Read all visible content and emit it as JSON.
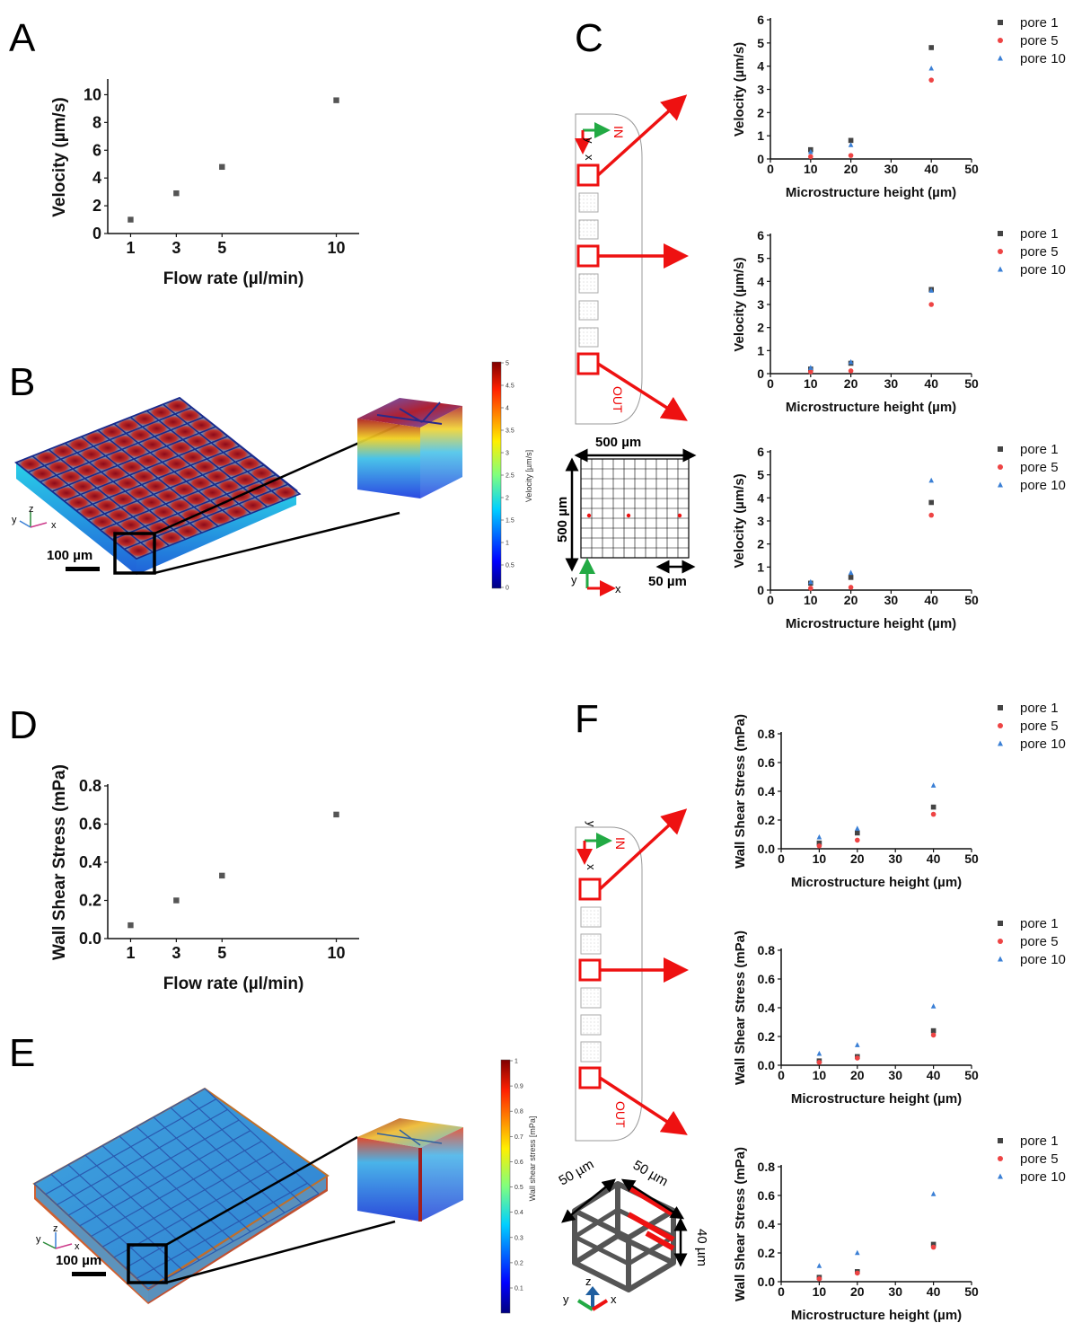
{
  "panels": {
    "A": "A",
    "B": "B",
    "C": "C",
    "D": "D",
    "E": "E",
    "F": "F"
  },
  "colors": {
    "pore1": "#444444",
    "pore5": "#ee4444",
    "pore10": "#3a7fd5",
    "arrow_red": "#ee1111",
    "arrow_green": "#22aa44"
  },
  "panel_B": {
    "colorbar_title": "Velocity [µm/s]",
    "colorbar_ticks": [
      "5",
      "4.5",
      "4",
      "3.5",
      "3",
      "2.5",
      "2",
      "1.5",
      "1",
      "0.5",
      "0"
    ],
    "scale_bar": "100 µm",
    "axes": {
      "x": "x",
      "y": "y",
      "z": "z"
    }
  },
  "panel_E": {
    "colorbar_title": "Wall shear stress [mPa]",
    "colorbar_ticks": [
      "1",
      "0.9",
      "0.8",
      "0.7",
      "0.6",
      "0.5",
      "0.4",
      "0.3",
      "0.2",
      "0.1"
    ],
    "scale_bar": "100 µm",
    "axes": {
      "x": "x",
      "y": "y",
      "z": "z"
    }
  },
  "channel_diagram": {
    "in_label": "IN",
    "out_label": "OUT",
    "axis_x": "x",
    "axis_y": "y"
  },
  "grid_diagram": {
    "width_label": "500 µm",
    "height_label": "500 µm",
    "pitch_label": "50 µm",
    "axis_x": "x",
    "axis_y": "y"
  },
  "cube_diagram": {
    "label_left": "50 µm",
    "label_right": "50 µm",
    "label_height": "40 µm",
    "axis_x": "x",
    "axis_y": "y",
    "axis_z": "z"
  },
  "chart_data": [
    {
      "id": "A",
      "type": "scatter",
      "xlabel": "Flow rate (µl/min)",
      "ylabel": "Velocity (µm/s)",
      "x": [
        1,
        3,
        5,
        10
      ],
      "xticks": [
        1,
        3,
        5,
        10
      ],
      "xlim": [
        0,
        11
      ],
      "ylim": [
        0,
        11
      ],
      "yticks": [
        0,
        2,
        4,
        6,
        8,
        10
      ],
      "series": [
        {
          "values": [
            1.0,
            2.9,
            4.8,
            9.6
          ],
          "marker": "square",
          "color": "#555555"
        }
      ]
    },
    {
      "id": "D",
      "type": "scatter",
      "xlabel": "Flow rate (µl/min)",
      "ylabel": "Wall Shear Stress (mPa)",
      "x": [
        1,
        3,
        5,
        10
      ],
      "xticks": [
        1,
        3,
        5,
        10
      ],
      "xlim": [
        0,
        11
      ],
      "ylim": [
        0,
        0.8
      ],
      "yticks": [
        "0.0",
        "0.2",
        "0.4",
        "0.6",
        "0.8"
      ],
      "series": [
        {
          "values": [
            0.07,
            0.2,
            0.33,
            0.65
          ],
          "marker": "square",
          "color": "#555555"
        }
      ]
    },
    {
      "id": "C1",
      "type": "scatter",
      "xlabel": "Microstructure height (µm)",
      "ylabel": "Velocity (µm/s)",
      "x": [
        10,
        20,
        40
      ],
      "xticks": [
        0,
        10,
        20,
        30,
        40,
        50
      ],
      "xlim": [
        0,
        50
      ],
      "ylim": [
        0,
        6
      ],
      "yticks": [
        0,
        1,
        2,
        3,
        4,
        5,
        6
      ],
      "legend": "top-right",
      "series": [
        {
          "name": "pore 1",
          "values": [
            0.4,
            0.8,
            4.8
          ],
          "marker": "square"
        },
        {
          "name": "pore 5",
          "values": [
            0.1,
            0.15,
            3.4
          ],
          "marker": "circle"
        },
        {
          "name": "pore 10",
          "values": [
            0.3,
            0.6,
            3.9
          ],
          "marker": "triangle"
        }
      ]
    },
    {
      "id": "C2",
      "type": "scatter",
      "xlabel": "Microstructure height (µm)",
      "ylabel": "Velocity (µm/s)",
      "x": [
        10,
        20,
        40
      ],
      "xticks": [
        0,
        10,
        20,
        30,
        40,
        50
      ],
      "xlim": [
        0,
        50
      ],
      "ylim": [
        0,
        6
      ],
      "yticks": [
        0,
        1,
        2,
        3,
        4,
        5,
        6
      ],
      "legend": "top-right",
      "series": [
        {
          "name": "pore 1",
          "values": [
            0.2,
            0.45,
            3.65
          ],
          "marker": "square"
        },
        {
          "name": "pore 5",
          "values": [
            0.08,
            0.12,
            3.0
          ],
          "marker": "circle"
        },
        {
          "name": "pore 10",
          "values": [
            0.25,
            0.5,
            3.6
          ],
          "marker": "triangle"
        }
      ]
    },
    {
      "id": "C3",
      "type": "scatter",
      "xlabel": "Microstructure height (µm)",
      "ylabel": "Velocity (µm/s)",
      "x": [
        10,
        20,
        40
      ],
      "xticks": [
        0,
        10,
        20,
        30,
        40,
        50
      ],
      "xlim": [
        0,
        50
      ],
      "ylim": [
        0,
        6
      ],
      "yticks": [
        0,
        1,
        2,
        3,
        4,
        5,
        6
      ],
      "legend": "top-right",
      "series": [
        {
          "name": "pore 1",
          "values": [
            0.3,
            0.55,
            3.8
          ],
          "marker": "square"
        },
        {
          "name": "pore 5",
          "values": [
            0.08,
            0.12,
            3.25
          ],
          "marker": "circle"
        },
        {
          "name": "pore 10",
          "values": [
            0.35,
            0.75,
            4.75
          ],
          "marker": "triangle"
        }
      ]
    },
    {
      "id": "F1",
      "type": "scatter",
      "xlabel": "Microstructure height (µm)",
      "ylabel": "Wall Shear Stress (mPa)",
      "x": [
        10,
        20,
        40
      ],
      "xticks": [
        0,
        10,
        20,
        30,
        40,
        50
      ],
      "xlim": [
        0,
        50
      ],
      "ylim": [
        0,
        0.8
      ],
      "yticks": [
        "0.0",
        "0.2",
        "0.4",
        "0.6",
        "0.8"
      ],
      "legend": "top-right",
      "series": [
        {
          "name": "pore 1",
          "values": [
            0.04,
            0.11,
            0.29
          ],
          "marker": "square"
        },
        {
          "name": "pore 5",
          "values": [
            0.02,
            0.06,
            0.24
          ],
          "marker": "circle"
        },
        {
          "name": "pore 10",
          "values": [
            0.08,
            0.14,
            0.44
          ],
          "marker": "triangle"
        }
      ]
    },
    {
      "id": "F2",
      "type": "scatter",
      "xlabel": "Microstructure height (µm)",
      "ylabel": "Wall Shear Stress (mPa)",
      "x": [
        10,
        20,
        40
      ],
      "xticks": [
        0,
        10,
        20,
        30,
        40,
        50
      ],
      "xlim": [
        0,
        50
      ],
      "ylim": [
        0,
        0.8
      ],
      "yticks": [
        "0.0",
        "0.2",
        "0.4",
        "0.6",
        "0.8"
      ],
      "legend": "top-right",
      "series": [
        {
          "name": "pore 1",
          "values": [
            0.03,
            0.06,
            0.24
          ],
          "marker": "square"
        },
        {
          "name": "pore 5",
          "values": [
            0.02,
            0.05,
            0.21
          ],
          "marker": "circle"
        },
        {
          "name": "pore 10",
          "values": [
            0.08,
            0.14,
            0.41
          ],
          "marker": "triangle"
        }
      ]
    },
    {
      "id": "F3",
      "type": "scatter",
      "xlabel": "Microstructure height (µm)",
      "ylabel": "Wall Shear Stress (mPa)",
      "x": [
        10,
        20,
        40
      ],
      "xticks": [
        0,
        10,
        20,
        30,
        40,
        50
      ],
      "xlim": [
        0,
        50
      ],
      "ylim": [
        0,
        0.8
      ],
      "yticks": [
        "0.0",
        "0.2",
        "0.4",
        "0.6",
        "0.8"
      ],
      "legend": "top-right",
      "series": [
        {
          "name": "pore 1",
          "values": [
            0.03,
            0.07,
            0.26
          ],
          "marker": "square"
        },
        {
          "name": "pore 5",
          "values": [
            0.02,
            0.06,
            0.24
          ],
          "marker": "circle"
        },
        {
          "name": "pore 10",
          "values": [
            0.11,
            0.2,
            0.61
          ],
          "marker": "triangle"
        }
      ]
    }
  ]
}
